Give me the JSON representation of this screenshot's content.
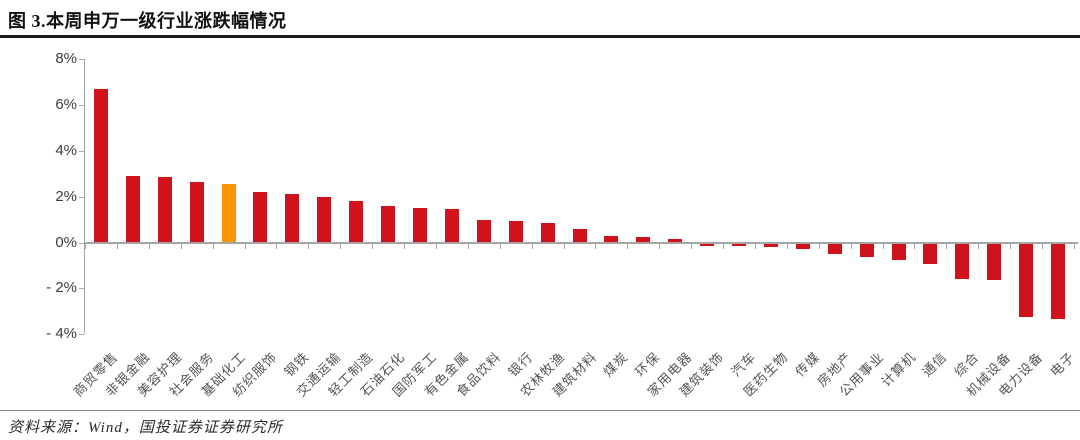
{
  "header": {
    "title": "图 3.本周申万一级行业涨跌幅情况"
  },
  "footer": {
    "source_note": "资料来源：Wind，国投证券证券研究所"
  },
  "colors": {
    "bar_red": "#cf121b",
    "bar_highlight_orange": "#f79400",
    "axis_gray": "#a6a6a6",
    "xlabel_gray": "#555555",
    "ylabel_dark": "#3d3d3d"
  },
  "chart_data": {
    "type": "bar",
    "title": "本周申万一级行业涨跌幅情况",
    "xlabel": "",
    "ylabel": "",
    "ylim": [
      -4,
      8
    ],
    "ytick_step": 2,
    "grid": false,
    "legend": "none",
    "unit": "%",
    "highlight_index": 4,
    "highlight_category": "基础化工",
    "categories": [
      "商贸零售",
      "非银金融",
      "美容护理",
      "社会服务",
      "基础化工",
      "纺织服饰",
      "钢铁",
      "交通运输",
      "轻工制造",
      "石油石化",
      "国防军工",
      "有色金属",
      "食品饮料",
      "银行",
      "农林牧渔",
      "建筑材料",
      "煤炭",
      "环保",
      "家用电器",
      "建筑装饰",
      "汽车",
      "医药生物",
      "传媒",
      "房地产",
      "公用事业",
      "计算机",
      "通信",
      "综合",
      "机械设备",
      "电力设备",
      "电子"
    ],
    "values": [
      6.7,
      2.9,
      2.85,
      2.65,
      2.55,
      2.2,
      2.1,
      2.0,
      1.8,
      1.6,
      1.5,
      1.45,
      1.0,
      0.95,
      0.85,
      0.6,
      0.3,
      0.25,
      0.15,
      -0.1,
      -0.12,
      -0.17,
      -0.22,
      -0.45,
      -0.6,
      -0.7,
      -0.9,
      -1.55,
      -1.6,
      -3.2,
      -3.3
    ],
    "yticks": [
      {
        "value": 8,
        "label": "8%"
      },
      {
        "value": 6,
        "label": "6%"
      },
      {
        "value": 4,
        "label": "4%"
      },
      {
        "value": 2,
        "label": "2%"
      },
      {
        "value": 0,
        "label": "0%"
      },
      {
        "value": -2,
        "label": "- 2%"
      },
      {
        "value": -4,
        "label": "- 4%"
      }
    ]
  }
}
